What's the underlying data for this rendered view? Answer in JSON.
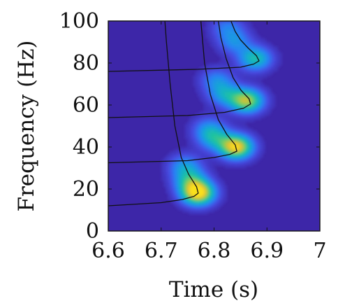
{
  "chart_data": {
    "type": "heatmap",
    "title": "",
    "xlabel": "Time (s)",
    "ylabel": "Frequency (Hz)",
    "xlim": [
      6.6,
      7.0
    ],
    "ylim": [
      0,
      100
    ],
    "xticks": [
      6.6,
      6.7,
      6.8,
      6.9,
      7.0
    ],
    "xtick_labels": [
      "6.6",
      "6.7",
      "6.8",
      "6.9",
      "7"
    ],
    "yticks": [
      0,
      20,
      40,
      60,
      80,
      100
    ],
    "ytick_labels": [
      "0",
      "20",
      "40",
      "60",
      "80",
      "100"
    ],
    "grid": false,
    "colormap": "parula",
    "colors": {
      "background": "#3d26a8",
      "high": "#f9e01f",
      "curve": "#111111"
    },
    "energy_blobs": [
      {
        "t": 6.77,
        "f": 18,
        "amp": 1.0
      },
      {
        "t": 6.755,
        "f": 24,
        "amp": 0.45
      },
      {
        "t": 6.745,
        "f": 31,
        "amp": 0.35
      },
      {
        "t": 6.842,
        "f": 40,
        "amp": 0.95
      },
      {
        "t": 6.8,
        "f": 44,
        "amp": 0.4
      },
      {
        "t": 6.79,
        "f": 49,
        "amp": 0.28
      },
      {
        "t": 6.862,
        "f": 62,
        "amp": 0.8
      },
      {
        "t": 6.82,
        "f": 65,
        "amp": 0.38
      },
      {
        "t": 6.805,
        "f": 72,
        "amp": 0.3
      },
      {
        "t": 6.878,
        "f": 82,
        "amp": 0.55
      },
      {
        "t": 6.84,
        "f": 90,
        "amp": 0.32
      },
      {
        "t": 6.825,
        "f": 97,
        "amp": 0.26
      }
    ],
    "curves": [
      {
        "points": [
          [
            6.6,
            12
          ],
          [
            6.7,
            13.5
          ],
          [
            6.74,
            15
          ],
          [
            6.762,
            16.5
          ],
          [
            6.77,
            18
          ],
          [
            6.767,
            21
          ],
          [
            6.752,
            27
          ],
          [
            6.738,
            35
          ],
          [
            6.726,
            50
          ],
          [
            6.717,
            70
          ],
          [
            6.71,
            90
          ],
          [
            6.707,
            100
          ]
        ]
      },
      {
        "points": [
          [
            6.6,
            32.5
          ],
          [
            6.75,
            33.5
          ],
          [
            6.8,
            35
          ],
          [
            6.83,
            36.5
          ],
          [
            6.843,
            38
          ],
          [
            6.84,
            41
          ],
          [
            6.824,
            46
          ],
          [
            6.808,
            53
          ],
          [
            6.793,
            65
          ],
          [
            6.782,
            80
          ],
          [
            6.775,
            100
          ]
        ]
      },
      {
        "points": [
          [
            6.6,
            54
          ],
          [
            6.75,
            55
          ],
          [
            6.82,
            56.5
          ],
          [
            6.856,
            58.5
          ],
          [
            6.869,
            60.5
          ],
          [
            6.866,
            63
          ],
          [
            6.851,
            67
          ],
          [
            6.836,
            73
          ],
          [
            6.823,
            82
          ],
          [
            6.813,
            92
          ],
          [
            6.808,
            100
          ]
        ]
      },
      {
        "points": [
          [
            6.6,
            76
          ],
          [
            6.77,
            77
          ],
          [
            6.85,
            78
          ],
          [
            6.875,
            79.5
          ],
          [
            6.885,
            81
          ],
          [
            6.88,
            83.5
          ],
          [
            6.865,
            87
          ],
          [
            6.85,
            91
          ],
          [
            6.84,
            95
          ],
          [
            6.832,
            100
          ]
        ]
      }
    ]
  }
}
